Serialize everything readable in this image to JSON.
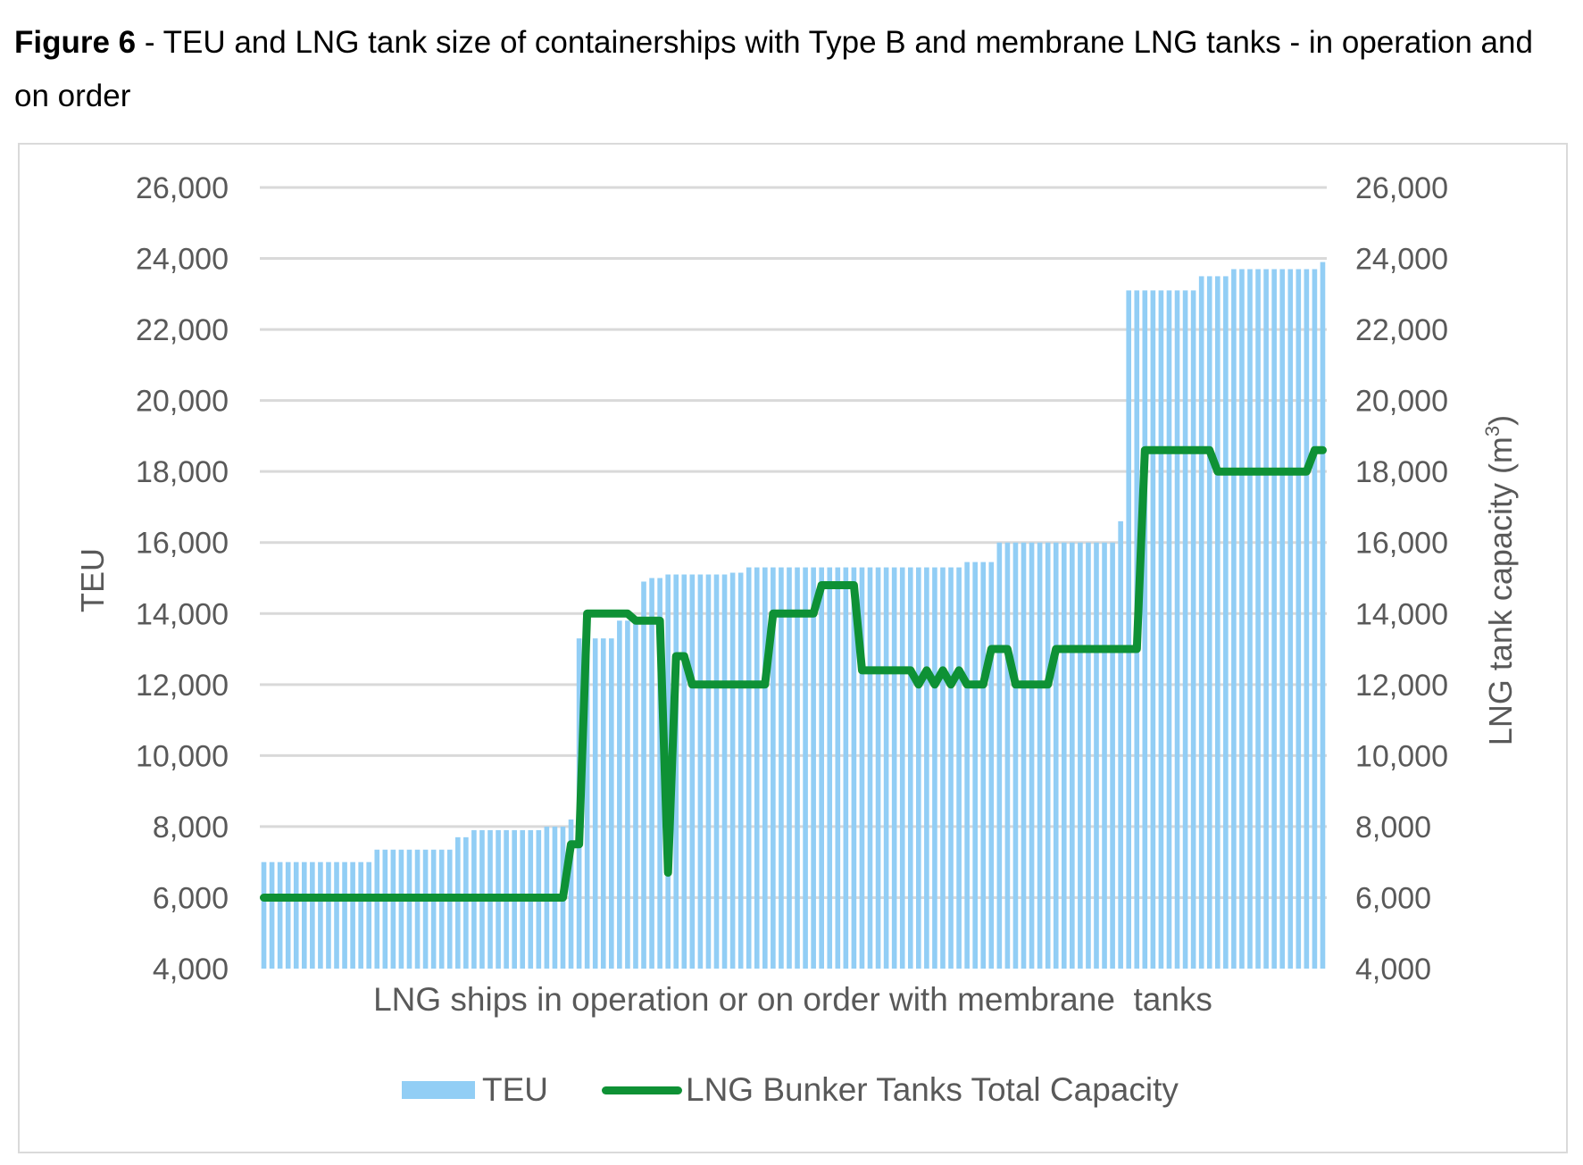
{
  "caption": {
    "figure_label": "Figure 6",
    "text": " - TEU and LNG tank size of containerships with Type B and membrane LNG tanks - in operation and on order"
  },
  "legend": {
    "teu": "TEU",
    "lng": "LNG Bunker Tanks Total Capacity"
  },
  "colors": {
    "teu_bar": "#92cef5",
    "lng_line": "#0e9135",
    "grid": "#d9d9d9",
    "text": "#595959"
  },
  "chart_data": {
    "type": "bar+line",
    "title": "Figure 6 - TEU and LNG tank size of containerships with Type B and membrane LNG tanks - in operation and on order",
    "xlabel": "LNG ships in operation or on order with membrane  tanks",
    "ylabel": "TEU",
    "y2label": "LNG tank capacity (m3)",
    "ylim": [
      4000,
      26000
    ],
    "y2lim": [
      4000,
      26000
    ],
    "yticks": [
      "4,000",
      "6,000",
      "8,000",
      "10,000",
      "12,000",
      "14,000",
      "16,000",
      "18,000",
      "20,000",
      "22,000",
      "24,000",
      "26,000"
    ],
    "grid": true,
    "legend_position": "bottom",
    "n_ships": 132,
    "series": [
      {
        "name": "TEU",
        "type": "bar",
        "axis": "left",
        "segments": [
          {
            "count": 14,
            "value": 7000
          },
          {
            "count": 10,
            "value": 7350
          },
          {
            "count": 2,
            "value": 7700
          },
          {
            "count": 9,
            "value": 7900
          },
          {
            "count": 3,
            "value": 8000
          },
          {
            "count": 1,
            "value": 8200
          },
          {
            "count": 5,
            "value": 13300
          },
          {
            "count": 3,
            "value": 13800
          },
          {
            "count": 1,
            "value": 14900
          },
          {
            "count": 2,
            "value": 15000
          },
          {
            "count": 8,
            "value": 15100
          },
          {
            "count": 2,
            "value": 15150
          },
          {
            "count": 27,
            "value": 15300
          },
          {
            "count": 4,
            "value": 15450
          },
          {
            "count": 15,
            "value": 16000
          },
          {
            "count": 1,
            "value": 16600
          },
          {
            "count": 9,
            "value": 23100
          },
          {
            "count": 4,
            "value": 23500
          },
          {
            "count": 11,
            "value": 23700
          },
          {
            "count": 1,
            "value": 23900
          }
        ]
      },
      {
        "name": "LNG Bunker Tanks Total Capacity",
        "type": "line",
        "axis": "right",
        "points": [
          [
            1,
            6000
          ],
          [
            38,
            6000
          ],
          [
            39,
            7500
          ],
          [
            40,
            7500
          ],
          [
            41,
            14000
          ],
          [
            46,
            14000
          ],
          [
            47,
            13800
          ],
          [
            50,
            13800
          ],
          [
            51,
            6700
          ],
          [
            52,
            12800
          ],
          [
            53,
            12800
          ],
          [
            54,
            12000
          ],
          [
            63,
            12000
          ],
          [
            64,
            14000
          ],
          [
            69,
            14000
          ],
          [
            70,
            14800
          ],
          [
            74,
            14800
          ],
          [
            75,
            12400
          ],
          [
            81,
            12400
          ],
          [
            82,
            12000
          ],
          [
            83,
            12400
          ],
          [
            84,
            12000
          ],
          [
            85,
            12400
          ],
          [
            86,
            12000
          ],
          [
            87,
            12400
          ],
          [
            88,
            12000
          ],
          [
            90,
            12000
          ],
          [
            91,
            13000
          ],
          [
            93,
            13000
          ],
          [
            94,
            12000
          ],
          [
            98,
            12000
          ],
          [
            99,
            13000
          ],
          [
            109,
            13000
          ],
          [
            110,
            18600
          ],
          [
            118,
            18600
          ],
          [
            119,
            18000
          ],
          [
            130,
            18000
          ],
          [
            131,
            18600
          ],
          [
            132,
            18600
          ]
        ]
      }
    ]
  }
}
